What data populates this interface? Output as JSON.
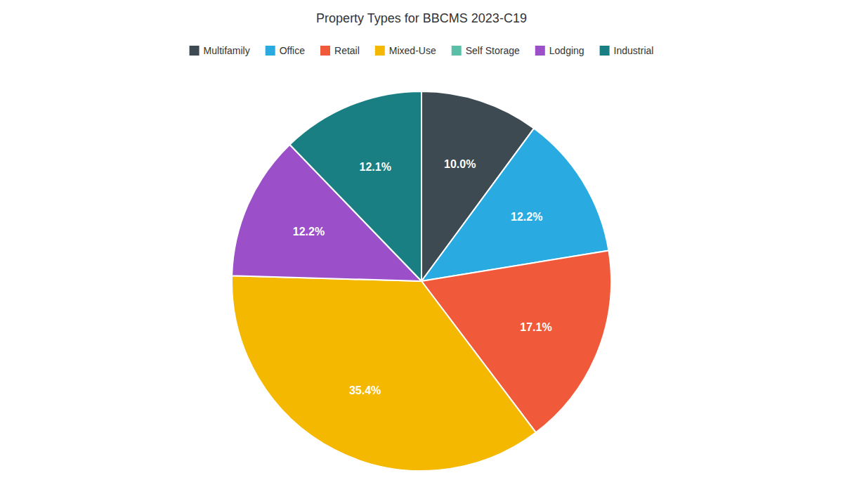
{
  "chart_data": {
    "type": "pie",
    "title": "Property Types for BBCMS 2023-C19",
    "categories": [
      "Multifamily",
      "Office",
      "Retail",
      "Mixed-Use",
      "Self Storage",
      "Lodging",
      "Industrial"
    ],
    "values": [
      10.0,
      12.2,
      17.1,
      35.4,
      0.0,
      12.2,
      12.1
    ],
    "value_labels": [
      "10.0%",
      "12.2%",
      "17.1%",
      "35.4%",
      null,
      "12.2%",
      "12.1%"
    ],
    "colors": [
      "#3d4a52",
      "#29abe2",
      "#f05a3a",
      "#f5b800",
      "#5bbfa8",
      "#9b4fc8",
      "#1a7f82"
    ],
    "data_labels": true,
    "legend": "top"
  }
}
